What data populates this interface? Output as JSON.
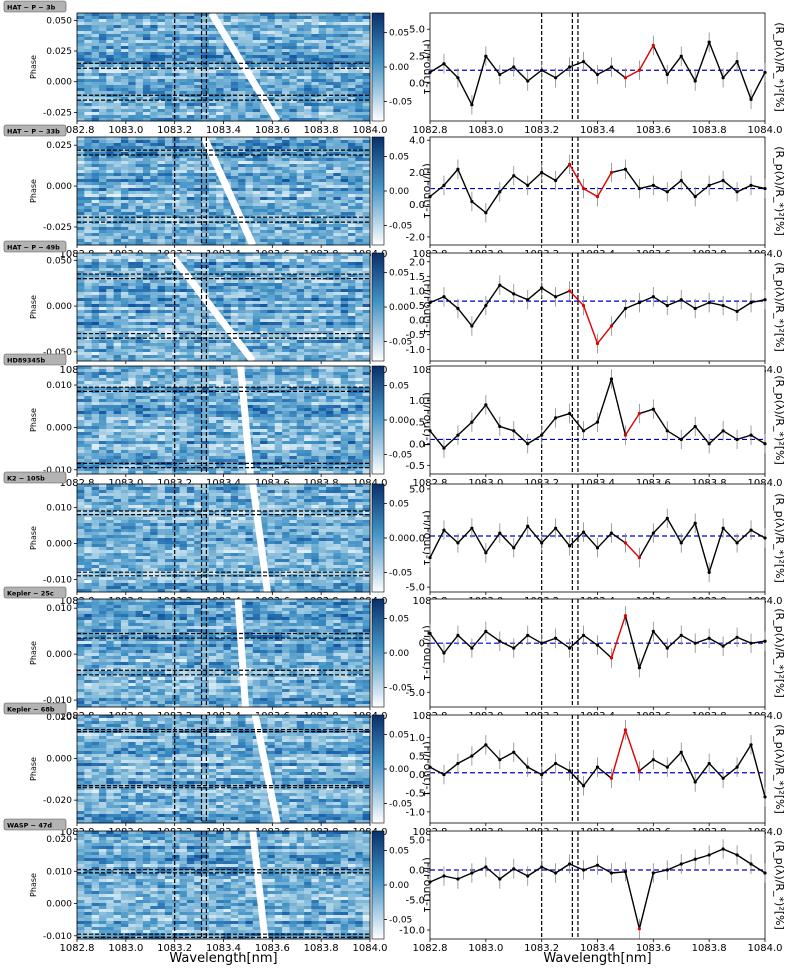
{
  "figure": {
    "xlabel": "Wavelength[nm]",
    "colorbar_label": "(Fi/Fout)-1",
    "colorbar_ticks": [
      "0.05",
      "0.00",
      "-0.05"
    ],
    "right_ylabel": "(R_p(λ)/R_*)²[%]",
    "x_ticks": [
      "1082.8",
      "1083.0",
      "1083.2",
      "1083.4",
      "1083.6",
      "1083.8",
      "1084.0"
    ],
    "phase_ylabel": "Phase"
  },
  "chart_data": [
    {
      "type": "heatmap",
      "planet": "HAT − P − 3b",
      "phase_ticks": [
        "0.050",
        "0.025",
        "0.000",
        "-0.025"
      ],
      "phase_range": [
        -0.032,
        0.056
      ],
      "trail": [
        [
          1083.35,
          0.056
        ],
        [
          1083.62,
          -0.032
        ]
      ],
      "vlines": [
        1083.2,
        1083.31,
        1083.33
      ],
      "hlines": [
        0.015,
        0.011,
        -0.011,
        -0.015
      ],
      "spectrum": {
        "type": "line",
        "y_ticks": [
          "5.0",
          "2.5",
          "0.0"
        ],
        "ylim": [
          -3.5,
          6.5
        ],
        "ref": 1.2,
        "x": [
          1082.8,
          1082.85,
          1082.9,
          1082.95,
          1083.0,
          1083.05,
          1083.1,
          1083.15,
          1083.2,
          1083.25,
          1083.3,
          1083.35,
          1083.4,
          1083.45,
          1083.5,
          1083.55,
          1083.6,
          1083.65,
          1083.7,
          1083.75,
          1083.8,
          1083.85,
          1083.9,
          1083.95,
          1084.0
        ],
        "y": [
          1.0,
          1.8,
          0.5,
          -2.0,
          2.5,
          0.8,
          1.5,
          0.2,
          1.2,
          0.5,
          1.5,
          2.0,
          0.8,
          1.5,
          0.5,
          1.2,
          3.5,
          0.8,
          2.5,
          0.2,
          3.8,
          0.5,
          2.0,
          -1.5,
          1.0
        ],
        "red": [
          [
            1083.5,
            1083.6
          ]
        ]
      }
    },
    {
      "type": "heatmap",
      "planet": "HAT − P − 33b",
      "phase_ticks": [
        "0.025",
        "0.000",
        "-0.025"
      ],
      "phase_range": [
        -0.036,
        0.03
      ],
      "trail": [
        [
          1083.32,
          0.03
        ],
        [
          1083.52,
          -0.036
        ]
      ],
      "vlines": [
        1083.2,
        1083.31,
        1083.33
      ],
      "hlines": [
        0.022,
        0.019,
        -0.019,
        -0.022
      ],
      "spectrum": {
        "type": "line",
        "y_ticks": [
          "4.0",
          "2.0",
          "0.0",
          "-2.0"
        ],
        "ylim": [
          -2.5,
          4.2
        ],
        "ref": 1.0,
        "x": [
          1082.8,
          1082.85,
          1082.9,
          1082.95,
          1083.0,
          1083.05,
          1083.1,
          1083.15,
          1083.2,
          1083.25,
          1083.3,
          1083.35,
          1083.4,
          1083.45,
          1083.5,
          1083.55,
          1083.6,
          1083.65,
          1083.7,
          1083.75,
          1083.8,
          1083.85,
          1083.9,
          1083.95,
          1084.0
        ],
        "y": [
          0.5,
          1.2,
          2.2,
          0.2,
          -0.5,
          0.8,
          1.8,
          1.2,
          2.0,
          1.5,
          2.5,
          1.0,
          0.5,
          2.0,
          2.2,
          1.0,
          1.2,
          0.8,
          1.5,
          0.5,
          1.2,
          1.5,
          0.8,
          1.2,
          1.0
        ],
        "red": [
          [
            1083.28,
            1083.48
          ]
        ]
      }
    },
    {
      "type": "heatmap",
      "planet": "HAT − P − 49b",
      "phase_ticks": [
        "0.050",
        "0.000",
        "-0.050"
      ],
      "phase_range": [
        -0.06,
        0.058
      ],
      "trail": [
        [
          1083.18,
          0.058
        ],
        [
          1083.52,
          -0.06
        ]
      ],
      "vlines": [
        1083.2,
        1083.31,
        1083.33
      ],
      "hlines": [
        0.035,
        0.03,
        -0.03,
        -0.035
      ],
      "spectrum": {
        "type": "line",
        "y_ticks": [
          "2.0",
          "1.5",
          "1.0",
          "0.5",
          "0.0",
          "-0.5",
          "-1.0"
        ],
        "ylim": [
          -1.4,
          2.3
        ],
        "ref": 0.65,
        "x": [
          1082.8,
          1082.85,
          1082.9,
          1082.95,
          1083.0,
          1083.05,
          1083.1,
          1083.15,
          1083.2,
          1083.25,
          1083.3,
          1083.35,
          1083.4,
          1083.45,
          1083.5,
          1083.55,
          1083.6,
          1083.65,
          1083.7,
          1083.75,
          1083.8,
          1083.85,
          1083.9,
          1083.95,
          1084.0
        ],
        "y": [
          0.6,
          0.8,
          0.4,
          -0.2,
          0.5,
          1.2,
          0.9,
          0.7,
          1.1,
          0.8,
          1.0,
          0.5,
          -0.8,
          -0.2,
          0.4,
          0.6,
          0.8,
          0.5,
          0.7,
          0.4,
          0.6,
          0.5,
          0.3,
          0.6,
          0.7
        ],
        "red": [
          [
            1083.28,
            1083.46
          ]
        ]
      }
    },
    {
      "type": "heatmap",
      "planet": "HD89345b",
      "phase_ticks": [
        "0.010",
        "0.000",
        "-0.010"
      ],
      "phase_range": [
        -0.011,
        0.0145
      ],
      "trail": [
        [
          1083.47,
          0.0145
        ],
        [
          1083.51,
          -0.011
        ]
      ],
      "vlines": [
        1083.2,
        1083.31,
        1083.33
      ],
      "hlines": [
        0.0095,
        0.0085,
        -0.0085,
        -0.0095
      ],
      "spectrum": {
        "type": "line",
        "y_ticks": [
          "1.0",
          "0.5",
          "0.0",
          "-0.5"
        ],
        "ylim": [
          -0.7,
          1.8
        ],
        "ref": 0.1,
        "x": [
          1082.8,
          1082.85,
          1082.9,
          1082.95,
          1083.0,
          1083.05,
          1083.1,
          1083.15,
          1083.2,
          1083.25,
          1083.3,
          1083.35,
          1083.4,
          1083.45,
          1083.5,
          1083.55,
          1083.6,
          1083.65,
          1083.7,
          1083.75,
          1083.8,
          1083.85,
          1083.9,
          1083.95,
          1084.0
        ],
        "y": [
          0.3,
          -0.1,
          0.2,
          0.5,
          0.9,
          0.4,
          0.3,
          0.0,
          0.2,
          0.6,
          0.7,
          0.3,
          0.5,
          1.5,
          0.2,
          0.7,
          0.8,
          0.3,
          0.1,
          0.4,
          0.0,
          0.3,
          0.1,
          0.2,
          0.0
        ],
        "red": [
          [
            1083.47,
            1083.57
          ]
        ]
      }
    },
    {
      "type": "heatmap",
      "planet": "K2 − 105b",
      "phase_ticks": [
        "0.010",
        "0.000",
        "-0.010"
      ],
      "phase_range": [
        -0.0135,
        0.0165
      ],
      "trail": [
        [
          1083.52,
          0.0165
        ],
        [
          1083.58,
          -0.0135
        ]
      ],
      "vlines": [
        1083.2,
        1083.31,
        1083.33
      ],
      "hlines": [
        0.009,
        0.008,
        -0.008,
        -0.009
      ],
      "spectrum": {
        "type": "line",
        "y_ticks": [
          "5.0",
          "0.0",
          "-5.0"
        ],
        "ylim": [
          -5.5,
          5.5
        ],
        "ref": 0.2,
        "x": [
          1082.8,
          1082.85,
          1082.9,
          1082.95,
          1083.0,
          1083.05,
          1083.1,
          1083.15,
          1083.2,
          1083.25,
          1083.3,
          1083.35,
          1083.4,
          1083.45,
          1083.5,
          1083.55,
          1083.6,
          1083.65,
          1083.7,
          1083.75,
          1083.8,
          1083.85,
          1083.9,
          1083.95,
          1084.0
        ],
        "y": [
          -2.0,
          0.8,
          -0.5,
          1.0,
          -1.5,
          0.5,
          -1.0,
          1.2,
          -0.5,
          1.0,
          -0.8,
          0.6,
          -1.0,
          0.5,
          -0.5,
          -2.0,
          0.5,
          2.0,
          -0.5,
          1.5,
          -3.5,
          1.0,
          -0.5,
          0.8,
          0.0
        ],
        "red": [
          [
            1083.5,
            1083.58
          ]
        ]
      }
    },
    {
      "type": "heatmap",
      "planet": "Kepler − 25c",
      "phase_ticks": [
        "0.010",
        "0.000",
        "-0.010"
      ],
      "phase_range": [
        -0.0115,
        0.012
      ],
      "trail": [
        [
          1083.46,
          0.012
        ],
        [
          1083.49,
          -0.0115
        ]
      ],
      "vlines": [
        1083.2,
        1083.31,
        1083.33
      ],
      "hlines": [
        0.0045,
        0.0035,
        -0.0035,
        -0.0045
      ],
      "spectrum": {
        "type": "line",
        "y_ticks": [
          "0",
          "-5.0"
        ],
        "ylim": [
          -6.5,
          4.5
        ],
        "ref": 0.0,
        "x": [
          1082.8,
          1082.85,
          1082.9,
          1082.95,
          1083.0,
          1083.05,
          1083.1,
          1083.15,
          1083.2,
          1083.25,
          1083.3,
          1083.35,
          1083.4,
          1083.45,
          1083.5,
          1083.55,
          1083.6,
          1083.65,
          1083.7,
          1083.75,
          1083.8,
          1083.85,
          1083.9,
          1083.95,
          1084.0
        ],
        "y": [
          1.0,
          -1.0,
          0.8,
          -0.5,
          1.2,
          0.2,
          -0.5,
          0.8,
          0.0,
          0.5,
          -0.5,
          0.8,
          -0.2,
          -1.5,
          2.8,
          -2.5,
          1.2,
          -0.5,
          0.8,
          0.0,
          0.5,
          -0.3,
          0.6,
          0.0,
          0.2
        ],
        "red": [
          [
            1083.45,
            1083.5
          ]
        ]
      }
    },
    {
      "type": "heatmap",
      "planet": "Kepler − 68b",
      "phase_ticks": [
        "0.020",
        "0.000",
        "-0.020"
      ],
      "phase_range": [
        -0.031,
        0.021
      ],
      "trail": [
        [
          1083.53,
          0.021
        ],
        [
          1083.62,
          -0.031
        ]
      ],
      "vlines": [
        1083.2,
        1083.31,
        1083.33
      ],
      "hlines": [
        0.014,
        0.013,
        -0.013,
        -0.014
      ],
      "spectrum": {
        "type": "line",
        "y_ticks": [
          "1.0",
          "0.5",
          "0.0",
          "-0.5",
          "-1.0"
        ],
        "ylim": [
          -1.3,
          1.6
        ],
        "ref": 0.05,
        "x": [
          1082.8,
          1082.85,
          1082.9,
          1082.95,
          1083.0,
          1083.05,
          1083.1,
          1083.15,
          1083.2,
          1083.25,
          1083.3,
          1083.35,
          1083.4,
          1083.45,
          1083.5,
          1083.55,
          1083.6,
          1083.65,
          1083.7,
          1083.75,
          1083.8,
          1083.85,
          1083.9,
          1083.95,
          1084.0
        ],
        "y": [
          0.2,
          0.0,
          0.3,
          0.5,
          0.8,
          0.4,
          0.6,
          0.2,
          0.0,
          0.3,
          0.1,
          -0.3,
          0.2,
          -0.1,
          1.2,
          0.1,
          0.4,
          0.2,
          0.6,
          -0.2,
          0.3,
          -0.1,
          0.2,
          0.8,
          -0.6
        ],
        "red": [
          [
            1083.45,
            1083.57
          ]
        ]
      }
    },
    {
      "type": "heatmap",
      "planet": "WASP − 47d",
      "phase_ticks": [
        "0.020",
        "0.010",
        "0.000",
        "-0.010"
      ],
      "phase_range": [
        -0.011,
        0.0225
      ],
      "trail": [
        [
          1083.52,
          0.0225
        ],
        [
          1083.57,
          -0.011
        ]
      ],
      "vlines": [
        1083.2,
        1083.31,
        1083.33
      ],
      "hlines": [
        0.0105,
        0.0095,
        -0.0095,
        -0.0105
      ],
      "spectrum": {
        "type": "line",
        "y_ticks": [
          "5.0",
          "0.0",
          "-5.0",
          "-10.0"
        ],
        "ylim": [
          -11.5,
          6.5
        ],
        "ref": 0.0,
        "x": [
          1082.8,
          1082.85,
          1082.9,
          1082.95,
          1083.0,
          1083.05,
          1083.1,
          1083.15,
          1083.2,
          1083.25,
          1083.3,
          1083.35,
          1083.4,
          1083.45,
          1083.5,
          1083.55,
          1083.6,
          1083.65,
          1083.7,
          1083.75,
          1083.8,
          1083.85,
          1083.9,
          1083.95,
          1084.0
        ],
        "y": [
          -2.0,
          -1.0,
          -1.5,
          -0.5,
          0.5,
          -1.5,
          0.2,
          -1.0,
          0.5,
          -0.5,
          1.0,
          0.0,
          0.8,
          -0.5,
          -0.3,
          -9.8,
          -0.5,
          0.0,
          1.0,
          1.8,
          2.5,
          3.5,
          2.5,
          1.0,
          -0.5
        ],
        "red": [
          [
            1083.53,
            1083.58
          ]
        ]
      }
    }
  ]
}
